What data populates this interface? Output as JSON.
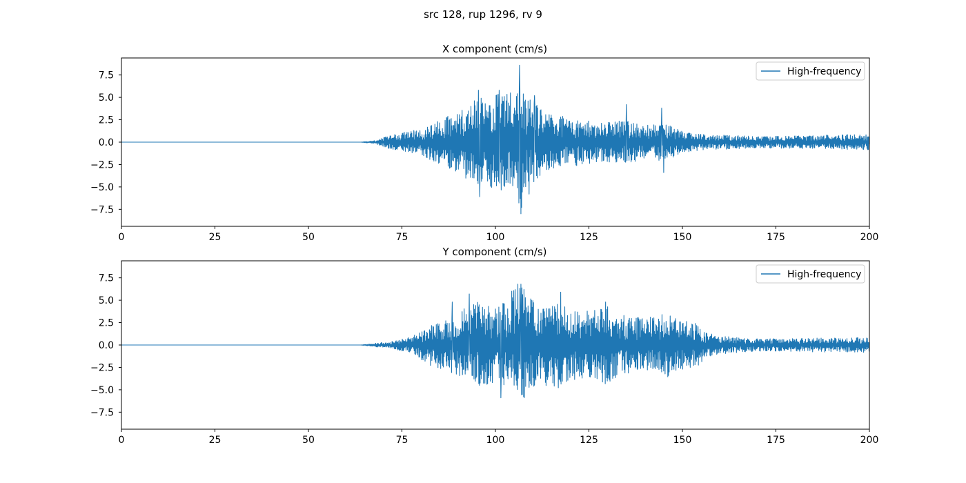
{
  "suptitle": "src 128, rup 1296, rv 9",
  "chart_data": [
    {
      "type": "line",
      "title": "X component (cm/s)",
      "xlabel": "",
      "ylabel": "",
      "xlim": [
        0,
        200
      ],
      "ylim": [
        -9.4,
        9.4
      ],
      "xticks": [
        0,
        25,
        50,
        75,
        100,
        125,
        150,
        175,
        200
      ],
      "xtick_labels": [
        "0",
        "25",
        "50",
        "75",
        "100",
        "125",
        "150",
        "175",
        "200"
      ],
      "yticks": [
        -7.5,
        -5.0,
        -2.5,
        0.0,
        2.5,
        5.0,
        7.5
      ],
      "ytick_labels": [
        "−7.5",
        "−5.0",
        "−2.5",
        "0.0",
        "2.5",
        "5.0",
        "7.5"
      ],
      "legend": {
        "position": "upper right",
        "entries": [
          "High-frequency"
        ]
      },
      "grid": false,
      "series": [
        {
          "name": "High-frequency",
          "color": "#1f77b4",
          "sampling": "dense seismogram trace; envelope read from plot",
          "envelope": {
            "t": [
              0,
              64,
              68,
              72,
              80,
              85,
              90,
              95,
              98,
              100,
              103,
              105,
              106.5,
              108,
              110,
              113,
              116,
              120,
              125,
              130,
              135,
              140,
              145,
              150,
              155,
              160,
              170,
              180,
              190,
              200
            ],
            "amp": [
              0,
              0,
              0.2,
              0.8,
              1.5,
              2.4,
              3.5,
              4.8,
              5.2,
              5.4,
              5.5,
              5.0,
              8.6,
              5.2,
              4.6,
              3.4,
              3.0,
              2.8,
              2.4,
              2.3,
              2.6,
              1.9,
              2.2,
              1.2,
              0.9,
              0.8,
              0.65,
              0.7,
              0.8,
              0.85
            ]
          },
          "extrema": [
            {
              "t": 93.5,
              "v": 4.0
            },
            {
              "t": 95.5,
              "v": 5.8
            },
            {
              "t": 95.8,
              "v": -6.1
            },
            {
              "t": 101,
              "v": 5.8
            },
            {
              "t": 104,
              "v": 5.5
            },
            {
              "t": 106.5,
              "v": 8.6
            },
            {
              "t": 106.8,
              "v": -8.0
            },
            {
              "t": 109,
              "v": -5.8
            },
            {
              "t": 110.5,
              "v": 5.2
            },
            {
              "t": 135,
              "v": 4.2
            },
            {
              "t": 144.5,
              "v": 3.8
            },
            {
              "t": 145,
              "v": -3.4
            }
          ]
        }
      ]
    },
    {
      "type": "line",
      "title": "Y component (cm/s)",
      "xlabel": "",
      "ylabel": "",
      "xlim": [
        0,
        200
      ],
      "ylim": [
        -9.4,
        9.4
      ],
      "xticks": [
        0,
        25,
        50,
        75,
        100,
        125,
        150,
        175,
        200
      ],
      "xtick_labels": [
        "0",
        "25",
        "50",
        "75",
        "100",
        "125",
        "150",
        "175",
        "200"
      ],
      "yticks": [
        -7.5,
        -5.0,
        -2.5,
        0.0,
        2.5,
        5.0,
        7.5
      ],
      "ytick_labels": [
        "−7.5",
        "−5.0",
        "−2.5",
        "0.0",
        "2.5",
        "5.0",
        "7.5"
      ],
      "legend": {
        "position": "upper right",
        "entries": [
          "High-frequency"
        ]
      },
      "grid": false,
      "series": [
        {
          "name": "High-frequency",
          "color": "#1f77b4",
          "sampling": "dense seismogram trace; envelope read from plot",
          "envelope": {
            "t": [
              0,
              64,
              68,
              72,
              78,
              82,
              88,
              92,
              95,
              100,
              103,
              105,
              107,
              110,
              113,
              117,
              120,
              125,
              129,
              133,
              140,
              146,
              150,
              154,
              156,
              160,
              170,
              180,
              190,
              200
            ],
            "amp": [
              0,
              0,
              0.2,
              0.4,
              1.0,
              2.2,
              3.0,
              4.2,
              4.8,
              4.2,
              5.0,
              6.5,
              6.8,
              5.0,
              4.5,
              5.0,
              4.0,
              3.8,
              4.6,
              3.4,
              3.0,
              3.6,
              2.8,
              2.6,
              1.4,
              1.0,
              0.7,
              0.75,
              0.8,
              0.85
            ]
          },
          "extrema": [
            {
              "t": 88.5,
              "v": 4.8
            },
            {
              "t": 93,
              "v": 5.7
            },
            {
              "t": 101.5,
              "v": -5.9
            },
            {
              "t": 106,
              "v": 6.8
            },
            {
              "t": 106.8,
              "v": 6.8
            },
            {
              "t": 117.5,
              "v": 5.9
            },
            {
              "t": 129.5,
              "v": 4.8
            },
            {
              "t": 153.5,
              "v": 2.4
            }
          ]
        }
      ]
    }
  ]
}
